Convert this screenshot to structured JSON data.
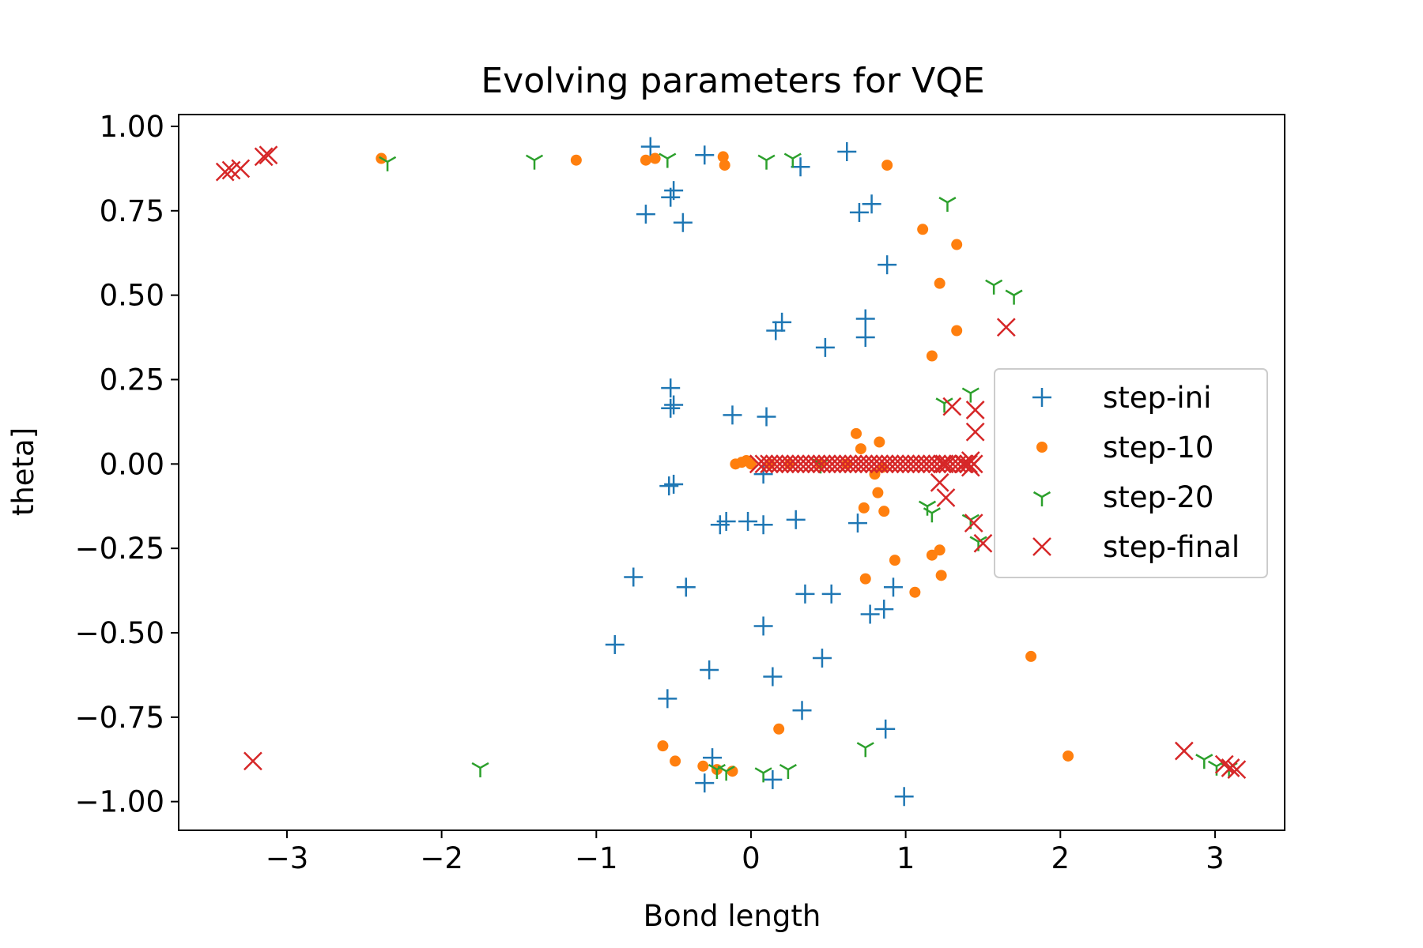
{
  "chart_data": {
    "type": "scatter",
    "title": "Evolving parameters for VQE",
    "xlabel": "Bond length",
    "ylabel": "theta]",
    "xlim": [
      -3.7,
      3.45
    ],
    "ylim": [
      -1.085,
      1.035
    ],
    "xticks": [
      -3,
      -2,
      -1,
      0,
      1,
      2,
      3
    ],
    "xtick_labels": [
      "−3",
      "−2",
      "−1",
      "0",
      "1",
      "2",
      "3"
    ],
    "yticks": [
      1.0,
      0.75,
      0.5,
      0.25,
      0.0,
      -0.25,
      -0.5,
      -0.75,
      -1.0
    ],
    "ytick_labels": [
      "1.00",
      "0.75",
      "0.50",
      "0.25",
      "0.00",
      "−0.25",
      "−0.50",
      "−0.75",
      "−1.00"
    ],
    "grid": false,
    "legend_position": "center-right",
    "series": [
      {
        "name": "step-ini",
        "marker": "plus",
        "color": "#1f77b4",
        "points": [
          [
            -0.65,
            0.94
          ],
          [
            -0.3,
            0.915
          ],
          [
            0.62,
            0.925
          ],
          [
            0.32,
            0.88
          ],
          [
            -0.52,
            0.79
          ],
          [
            -0.5,
            0.81
          ],
          [
            -0.68,
            0.74
          ],
          [
            -0.44,
            0.715
          ],
          [
            0.7,
            0.745
          ],
          [
            0.78,
            0.77
          ],
          [
            0.88,
            0.59
          ],
          [
            0.2,
            0.42
          ],
          [
            0.16,
            0.395
          ],
          [
            0.74,
            0.43
          ],
          [
            0.74,
            0.375
          ],
          [
            0.48,
            0.345
          ],
          [
            -0.52,
            0.225
          ],
          [
            -0.5,
            0.175
          ],
          [
            -0.52,
            0.165
          ],
          [
            -0.12,
            0.145
          ],
          [
            0.1,
            0.14
          ],
          [
            0.08,
            -0.03
          ],
          [
            -0.5,
            -0.06
          ],
          [
            -0.53,
            -0.065
          ],
          [
            -0.2,
            -0.18
          ],
          [
            -0.16,
            -0.17
          ],
          [
            -0.02,
            -0.17
          ],
          [
            0.08,
            -0.18
          ],
          [
            0.29,
            -0.165
          ],
          [
            0.69,
            -0.175
          ],
          [
            -0.76,
            -0.335
          ],
          [
            -0.42,
            -0.365
          ],
          [
            0.35,
            -0.385
          ],
          [
            0.52,
            -0.385
          ],
          [
            0.77,
            -0.445
          ],
          [
            0.86,
            -0.43
          ],
          [
            0.92,
            -0.365
          ],
          [
            -0.88,
            -0.535
          ],
          [
            0.08,
            -0.48
          ],
          [
            0.46,
            -0.575
          ],
          [
            -0.27,
            -0.61
          ],
          [
            0.14,
            -0.63
          ],
          [
            -0.54,
            -0.695
          ],
          [
            0.33,
            -0.73
          ],
          [
            0.87,
            -0.785
          ],
          [
            -0.25,
            -0.87
          ],
          [
            -0.3,
            -0.945
          ],
          [
            0.14,
            -0.935
          ],
          [
            0.99,
            -0.985
          ]
        ]
      },
      {
        "name": "step-10",
        "marker": "circle",
        "color": "#ff7f0e",
        "points": [
          [
            -2.39,
            0.905
          ],
          [
            -1.13,
            0.9
          ],
          [
            -0.68,
            0.9
          ],
          [
            -0.62,
            0.905
          ],
          [
            -0.18,
            0.91
          ],
          [
            -0.17,
            0.885
          ],
          [
            0.88,
            0.885
          ],
          [
            1.11,
            0.695
          ],
          [
            1.33,
            0.65
          ],
          [
            1.22,
            0.535
          ],
          [
            1.33,
            0.395
          ],
          [
            1.17,
            0.32
          ],
          [
            0.68,
            0.09
          ],
          [
            0.71,
            0.045
          ],
          [
            0.83,
            0.065
          ],
          [
            -0.1,
            0.0
          ],
          [
            -0.06,
            0.005
          ],
          [
            -0.03,
            0.01
          ],
          [
            0.0,
            0.0
          ],
          [
            0.12,
            0.0
          ],
          [
            0.25,
            0.0
          ],
          [
            0.45,
            0.0
          ],
          [
            0.62,
            0.0
          ],
          [
            0.85,
            -0.01
          ],
          [
            0.8,
            -0.03
          ],
          [
            0.73,
            -0.13
          ],
          [
            0.82,
            -0.085
          ],
          [
            0.86,
            -0.14
          ],
          [
            0.93,
            -0.285
          ],
          [
            1.17,
            -0.27
          ],
          [
            1.22,
            -0.255
          ],
          [
            0.74,
            -0.34
          ],
          [
            1.23,
            -0.33
          ],
          [
            1.06,
            -0.38
          ],
          [
            1.81,
            -0.57
          ],
          [
            0.18,
            -0.785
          ],
          [
            -0.57,
            -0.835
          ],
          [
            -0.49,
            -0.88
          ],
          [
            -0.31,
            -0.895
          ],
          [
            -0.22,
            -0.905
          ],
          [
            -0.12,
            -0.91
          ],
          [
            2.05,
            -0.865
          ]
        ]
      },
      {
        "name": "step-20",
        "marker": "tri_down",
        "color": "#2ca02c",
        "points": [
          [
            -2.35,
            0.895
          ],
          [
            -1.4,
            0.9
          ],
          [
            -0.54,
            0.905
          ],
          [
            0.1,
            0.9
          ],
          [
            0.27,
            0.905
          ],
          [
            1.27,
            0.775
          ],
          [
            1.57,
            0.53
          ],
          [
            1.7,
            0.5
          ],
          [
            1.25,
            0.18
          ],
          [
            1.42,
            0.21
          ],
          [
            0.45,
            0.0
          ],
          [
            1.14,
            -0.125
          ],
          [
            1.17,
            -0.145
          ],
          [
            1.42,
            -0.165
          ],
          [
            1.47,
            -0.23
          ],
          [
            -1.75,
            -0.9
          ],
          [
            -0.22,
            -0.905
          ],
          [
            -0.16,
            -0.91
          ],
          [
            0.08,
            -0.915
          ],
          [
            0.24,
            -0.905
          ],
          [
            0.74,
            -0.84
          ],
          [
            2.93,
            -0.875
          ],
          [
            3.01,
            -0.895
          ],
          [
            3.09,
            -0.9
          ]
        ]
      },
      {
        "name": "step-final",
        "marker": "x",
        "color": "#d62728",
        "points": [
          [
            -3.4,
            0.865
          ],
          [
            -3.36,
            0.87
          ],
          [
            -3.3,
            0.875
          ],
          [
            -3.15,
            0.91
          ],
          [
            -3.12,
            0.915
          ],
          [
            1.65,
            0.405
          ],
          [
            1.3,
            0.17
          ],
          [
            1.45,
            0.16
          ],
          [
            1.45,
            0.095
          ],
          [
            1.42,
            0.01
          ],
          [
            1.42,
            -0.01
          ],
          [
            1.38,
            0.0
          ],
          [
            1.25,
            0.0
          ],
          [
            1.22,
            -0.055
          ],
          [
            1.26,
            -0.1
          ],
          [
            1.44,
            -0.175
          ],
          [
            1.5,
            -0.235
          ],
          [
            -3.22,
            -0.88
          ],
          [
            2.8,
            -0.85
          ],
          [
            3.06,
            -0.89
          ],
          [
            3.1,
            -0.9
          ],
          [
            3.14,
            -0.905
          ]
        ],
        "dense_run": {
          "y": 0.0,
          "x_from": 0.05,
          "x_to": 1.44,
          "count": 42
        }
      }
    ]
  }
}
